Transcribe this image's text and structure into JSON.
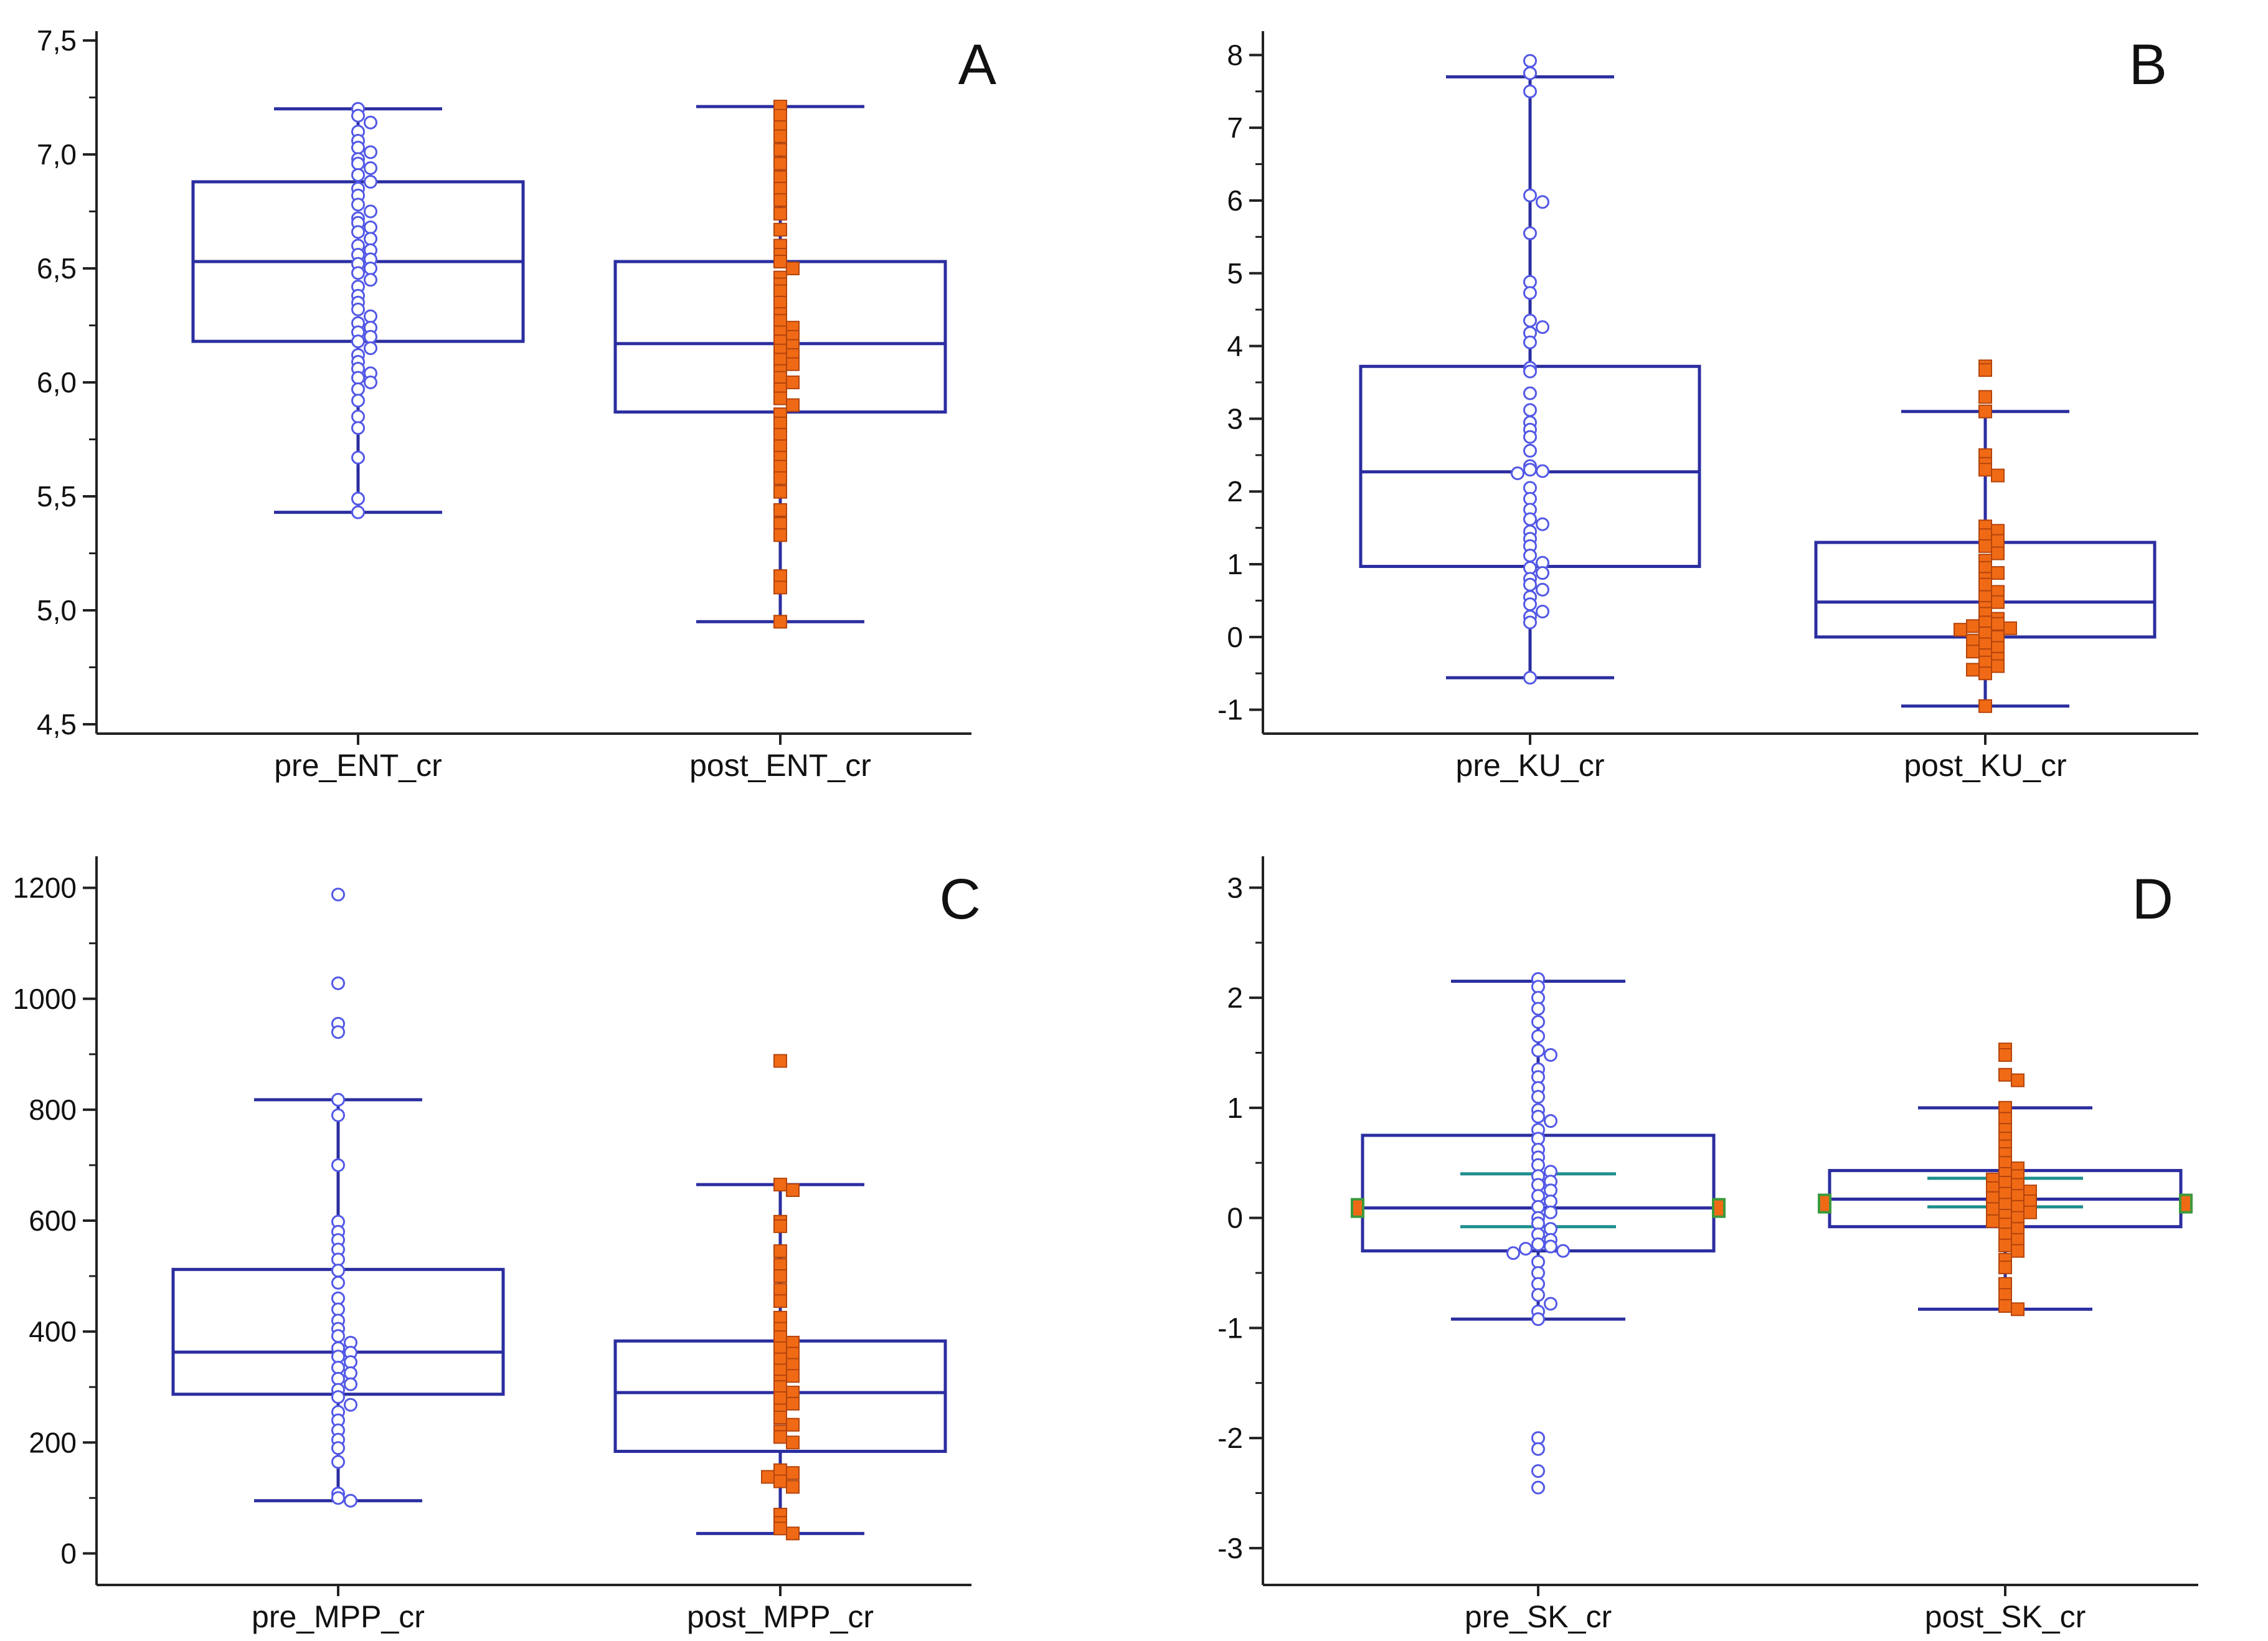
{
  "chart_data": [
    {
      "type": "box",
      "panel_label": "A",
      "ylim": [
        4.5,
        7.5
      ],
      "yticks": [
        4.5,
        5.0,
        5.5,
        6.0,
        6.5,
        7.0,
        7.5
      ],
      "ytick_labels": [
        "4,5",
        "5,0",
        "5,5",
        "6,0",
        "6,5",
        "7,0",
        "7,5"
      ],
      "categories": [
        "pre_ENT_cr",
        "post_ENT_cr"
      ],
      "boxes": [
        {
          "name": "pre_ENT_cr",
          "marker": "open-circle",
          "whisker_low": 5.43,
          "q1": 6.18,
          "median": 6.53,
          "q3": 6.88,
          "whisker_high": 7.2,
          "points": [
            7.2,
            7.17,
            7.14,
            7.1,
            7.06,
            7.03,
            7.01,
            6.98,
            6.96,
            6.94,
            6.91,
            6.88,
            6.85,
            6.82,
            6.78,
            6.75,
            6.72,
            6.7,
            6.68,
            6.66,
            6.63,
            6.6,
            6.58,
            6.56,
            6.54,
            6.52,
            6.5,
            6.48,
            6.45,
            6.42,
            6.38,
            6.35,
            6.32,
            6.29,
            6.26,
            6.24,
            6.22,
            6.2,
            6.18,
            6.15,
            6.12,
            6.09,
            6.06,
            6.04,
            6.02,
            6.0,
            5.97,
            5.92,
            5.85,
            5.8,
            5.67,
            5.49,
            5.43
          ]
        },
        {
          "name": "post_ENT_cr",
          "marker": "filled-square",
          "whisker_low": 4.95,
          "q1": 5.87,
          "median": 6.17,
          "q3": 6.53,
          "whisker_high": 7.21,
          "points": [
            7.21,
            7.17,
            7.12,
            7.08,
            7.02,
            6.96,
            6.9,
            6.85,
            6.8,
            6.74,
            6.67,
            6.6,
            6.56,
            6.53,
            6.5,
            6.46,
            6.43,
            6.4,
            6.35,
            6.3,
            6.27,
            6.24,
            6.22,
            6.2,
            6.18,
            6.16,
            6.14,
            6.12,
            6.1,
            6.08,
            6.05,
            6.02,
            6.0,
            5.97,
            5.93,
            5.9,
            5.86,
            5.82,
            5.77,
            5.72,
            5.67,
            5.63,
            5.58,
            5.52,
            5.44,
            5.38,
            5.33,
            5.15,
            5.1,
            4.95
          ]
        }
      ]
    },
    {
      "type": "box",
      "panel_label": "B",
      "ylim": [
        -1.2,
        8.2
      ],
      "yticks": [
        -1,
        0,
        1,
        2,
        3,
        4,
        5,
        6,
        7,
        8
      ],
      "ytick_labels": [
        "-1",
        "0",
        "1",
        "2",
        "3",
        "4",
        "5",
        "6",
        "7",
        "8"
      ],
      "categories": [
        "pre_KU_cr",
        "post_KU_cr"
      ],
      "boxes": [
        {
          "name": "pre_KU_cr",
          "marker": "open-circle",
          "whisker_low": -0.56,
          "q1": 0.97,
          "median": 2.27,
          "q3": 3.72,
          "whisker_high": 7.7,
          "points": [
            7.92,
            7.75,
            7.5,
            6.07,
            5.98,
            5.55,
            4.88,
            4.73,
            4.35,
            4.26,
            4.18,
            4.05,
            3.7,
            3.65,
            3.35,
            3.12,
            2.95,
            2.85,
            2.75,
            2.56,
            2.35,
            2.3,
            2.28,
            2.25,
            2.05,
            1.9,
            1.75,
            1.62,
            1.55,
            1.45,
            1.35,
            1.25,
            1.12,
            1.02,
            0.95,
            0.88,
            0.8,
            0.72,
            0.65,
            0.55,
            0.45,
            0.35,
            0.28,
            0.2,
            -0.56
          ]
        },
        {
          "name": "post_KU_cr",
          "marker": "filled-square",
          "whisker_low": -0.95,
          "q1": 0.0,
          "median": 0.48,
          "q3": 1.3,
          "whisker_high": 3.1,
          "points": [
            3.72,
            3.67,
            3.3,
            3.1,
            2.5,
            2.38,
            2.3,
            2.22,
            1.52,
            1.46,
            1.4,
            1.32,
            1.25,
            1.15,
            1.05,
            0.95,
            0.88,
            0.8,
            0.72,
            0.62,
            0.55,
            0.48,
            0.4,
            0.32,
            0.25,
            0.2,
            0.18,
            0.15,
            0.12,
            0.1,
            0.05,
            0.0,
            -0.05,
            -0.1,
            -0.15,
            -0.2,
            -0.25,
            -0.3,
            -0.35,
            -0.4,
            -0.45,
            -0.5,
            -0.95
          ]
        }
      ]
    },
    {
      "type": "box",
      "panel_label": "C",
      "ylim": [
        -40,
        1240
      ],
      "yticks": [
        0,
        200,
        400,
        600,
        800,
        1000,
        1200
      ],
      "ytick_labels": [
        "0",
        "200",
        "400",
        "600",
        "800",
        "1000",
        "1200"
      ],
      "categories": [
        "pre_MPP_cr",
        "post_MPP_cr"
      ],
      "boxes": [
        {
          "name": "pre_MPP_cr",
          "marker": "open-circle",
          "whisker_low": 95,
          "q1": 287,
          "median": 363,
          "q3": 512,
          "whisker_high": 818,
          "points": [
            1188,
            1028,
            955,
            940,
            818,
            790,
            700,
            598,
            580,
            565,
            548,
            530,
            510,
            488,
            460,
            440,
            420,
            405,
            392,
            380,
            370,
            362,
            355,
            345,
            335,
            325,
            315,
            305,
            295,
            282,
            268,
            255,
            240,
            222,
            205,
            190,
            165,
            108,
            100,
            95
          ]
        },
        {
          "name": "post_MPP_cr",
          "marker": "filled-square",
          "whisker_low": 36,
          "q1": 184,
          "median": 290,
          "q3": 383,
          "whisker_high": 665,
          "points": [
            888,
            665,
            655,
            598,
            590,
            545,
            520,
            500,
            475,
            455,
            425,
            405,
            390,
            380,
            370,
            360,
            350,
            340,
            330,
            320,
            310,
            300,
            290,
            280,
            270,
            258,
            245,
            232,
            220,
            210,
            200,
            150,
            145,
            138,
            130,
            120,
            70,
            55,
            45,
            36
          ]
        }
      ]
    },
    {
      "type": "box",
      "panel_label": "D",
      "ylim": [
        -3.25,
        3.2
      ],
      "yticks": [
        -3,
        -2,
        -1,
        0,
        1,
        2,
        3
      ],
      "ytick_labels": [
        "-3",
        "-2",
        "-1",
        "0",
        "1",
        "2",
        "3"
      ],
      "categories": [
        "pre_SK_cr",
        "post_SK_cr"
      ],
      "boxes": [
        {
          "name": "pre_SK_cr",
          "marker": "open-circle",
          "whisker_low": -0.92,
          "q1": -0.3,
          "median": 0.09,
          "q3": 0.75,
          "whisker_high": 2.15,
          "ci_low": -0.08,
          "ci_high": 0.4,
          "notch_marker": 0.09,
          "points": [
            2.17,
            2.1,
            2.0,
            1.9,
            1.78,
            1.65,
            1.52,
            1.48,
            1.35,
            1.28,
            1.18,
            1.1,
            0.98,
            0.92,
            0.88,
            0.8,
            0.72,
            0.62,
            0.55,
            0.48,
            0.42,
            0.38,
            0.33,
            0.3,
            0.25,
            0.2,
            0.15,
            0.1,
            0.05,
            0.0,
            -0.05,
            -0.1,
            -0.15,
            -0.2,
            -0.24,
            -0.26,
            -0.28,
            -0.3,
            -0.32,
            -0.4,
            -0.5,
            -0.6,
            -0.7,
            -0.78,
            -0.85,
            -0.92,
            -2.0,
            -2.1,
            -2.3,
            -2.45
          ]
        },
        {
          "name": "post_SK_cr",
          "marker": "filled-square",
          "whisker_low": -0.83,
          "q1": -0.08,
          "median": 0.17,
          "q3": 0.43,
          "whisker_high": 1.0,
          "ci_low": 0.1,
          "ci_high": 0.36,
          "notch_marker": 0.13,
          "points": [
            1.53,
            1.48,
            1.3,
            1.25,
            1.0,
            0.9,
            0.8,
            0.72,
            0.65,
            0.58,
            0.5,
            0.45,
            0.4,
            0.38,
            0.35,
            0.32,
            0.3,
            0.27,
            0.24,
            0.22,
            0.2,
            0.18,
            0.15,
            0.12,
            0.1,
            0.08,
            0.05,
            0.02,
            0.0,
            -0.03,
            -0.06,
            -0.1,
            -0.15,
            -0.2,
            -0.25,
            -0.3,
            -0.38,
            -0.45,
            -0.6,
            -0.7,
            -0.8,
            -0.83
          ]
        }
      ]
    }
  ]
}
